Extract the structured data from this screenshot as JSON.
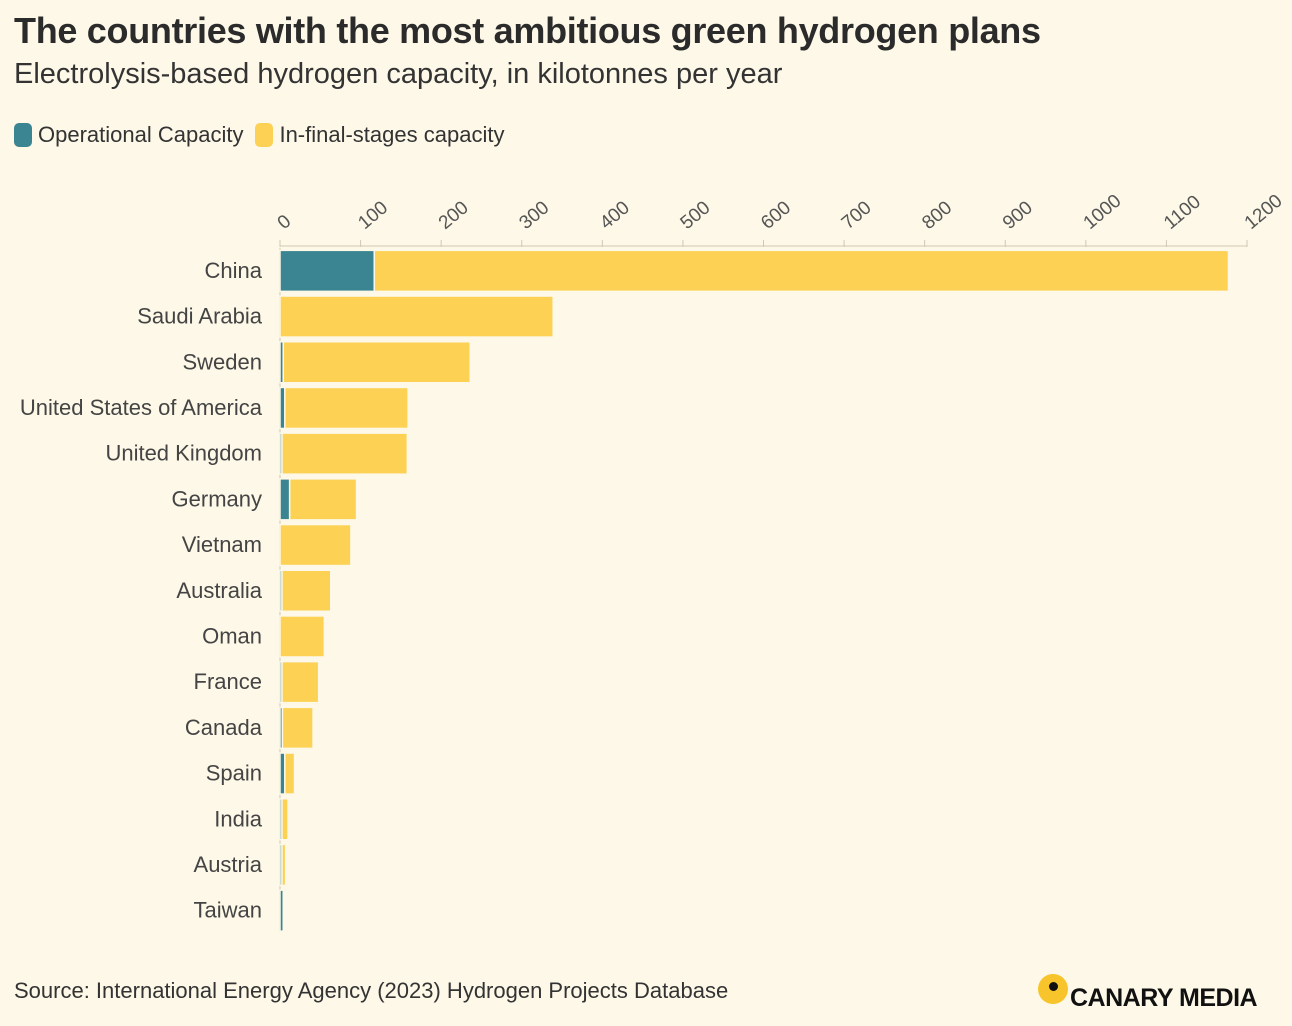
{
  "title": "The countries with the most ambitious green hydrogen plans",
  "subtitle": "Electrolysis-based hydrogen capacity, in kilotonnes per year",
  "legend": {
    "operational": "Operational Capacity",
    "final_stages": "In-final-stages capacity"
  },
  "colors": {
    "operational": "#3a8591",
    "final_stages": "#fcd154",
    "background": "#fdf8e7"
  },
  "source": "Source: International Energy Agency (2023) Hydrogen Projects Database",
  "logo": "CANARY MEDIA",
  "chart_data": {
    "type": "bar",
    "orientation": "horizontal",
    "stacked": true,
    "title": "The countries with the most ambitious green hydrogen plans",
    "xlabel": "Electrolysis-based hydrogen capacity, in kilotonnes per year",
    "ylabel": "",
    "xlim": [
      0,
      1200
    ],
    "xticks": [
      0,
      100,
      200,
      300,
      400,
      500,
      600,
      700,
      800,
      900,
      1000,
      1100,
      1200
    ],
    "axis_position": "top",
    "categories": [
      "China",
      "Saudi Arabia",
      "Sweden",
      "United States of America",
      "United Kingdom",
      "Germany",
      "Vietnam",
      "Australia",
      "Oman",
      "France",
      "Canada",
      "Spain",
      "India",
      "Austria",
      "Taiwan"
    ],
    "series": [
      {
        "name": "Operational Capacity",
        "values": [
          117,
          0,
          4,
          6,
          2,
          12,
          0,
          2,
          0,
          2,
          3,
          6,
          1,
          1,
          4
        ]
      },
      {
        "name": "In-final-stages capacity",
        "values": [
          1060,
          339,
          232,
          153,
          156,
          83,
          88,
          61,
          55,
          46,
          38,
          12,
          9,
          6,
          0
        ]
      }
    ]
  }
}
